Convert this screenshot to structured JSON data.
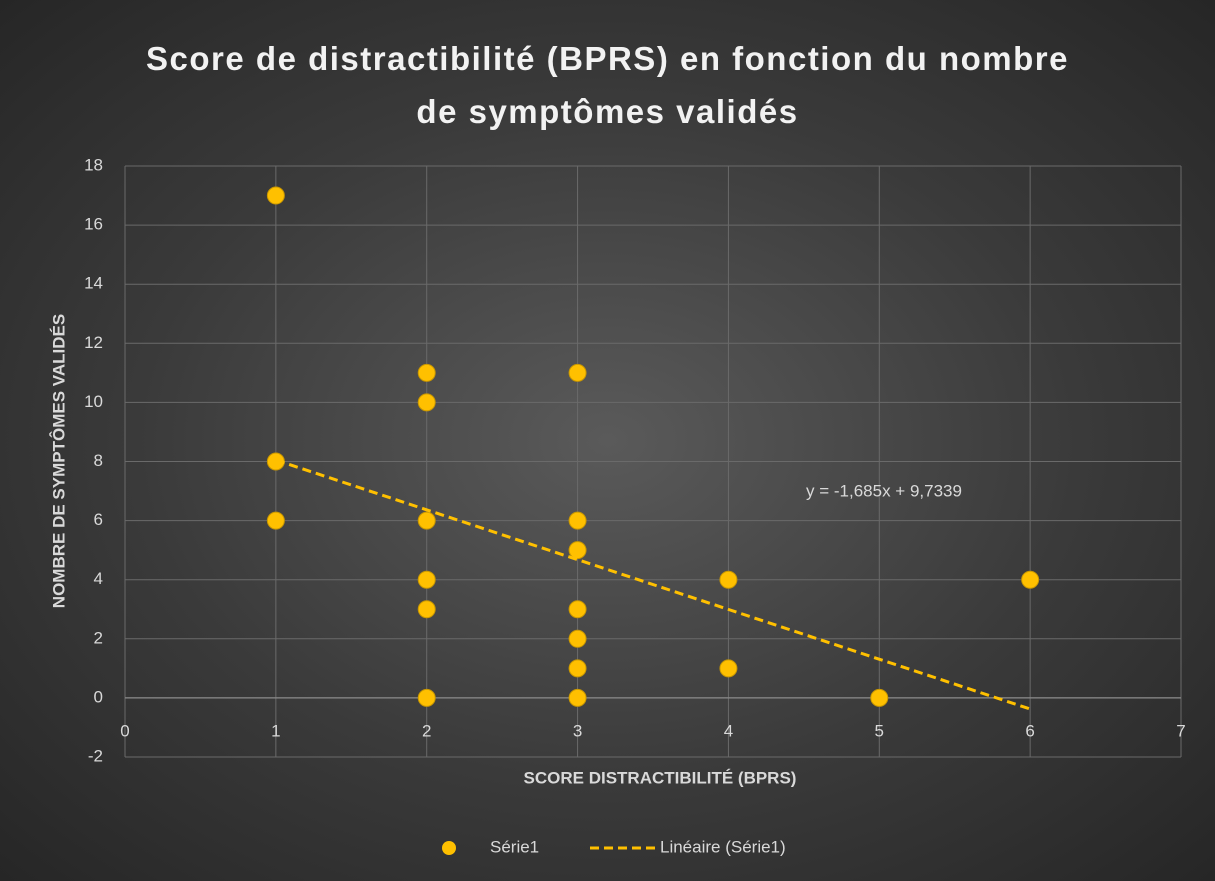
{
  "chart_data": {
    "type": "scatter",
    "title": "Score de distractibilité (BPRS) en fonction du nombre de symptômes validés",
    "xlabel": "SCORE DISTRACTIBILITÉ (BPRS)",
    "ylabel": "NOMBRE DE SYMPTÔMES VALIDÉS",
    "series": [
      {
        "name": "Série1",
        "color": "#ffc000",
        "x": [
          1,
          1,
          1,
          2,
          2,
          2,
          2,
          2,
          2,
          3,
          3,
          3,
          3,
          3,
          3,
          3,
          4,
          4,
          5,
          6
        ],
        "values": [
          17,
          8,
          6,
          11,
          10,
          6,
          4,
          3,
          0,
          11,
          6,
          5,
          3,
          2,
          1,
          0,
          4,
          1,
          0,
          4
        ]
      }
    ],
    "trendline": {
      "name": "Linéaire (Série1)",
      "color": "#ffc000",
      "slope": -1.685,
      "intercept": 9.7339,
      "label": "y = -1,685x + 9,7339",
      "x_range": [
        1,
        6
      ]
    },
    "xlim": [
      0,
      7
    ],
    "xticks": [
      0,
      1,
      2,
      3,
      4,
      5,
      6,
      7
    ],
    "ylim": [
      -2,
      18
    ],
    "yticks": [
      -2,
      0,
      2,
      4,
      6,
      8,
      10,
      12,
      14,
      16,
      18
    ],
    "grid": true,
    "legend": "bottom"
  }
}
